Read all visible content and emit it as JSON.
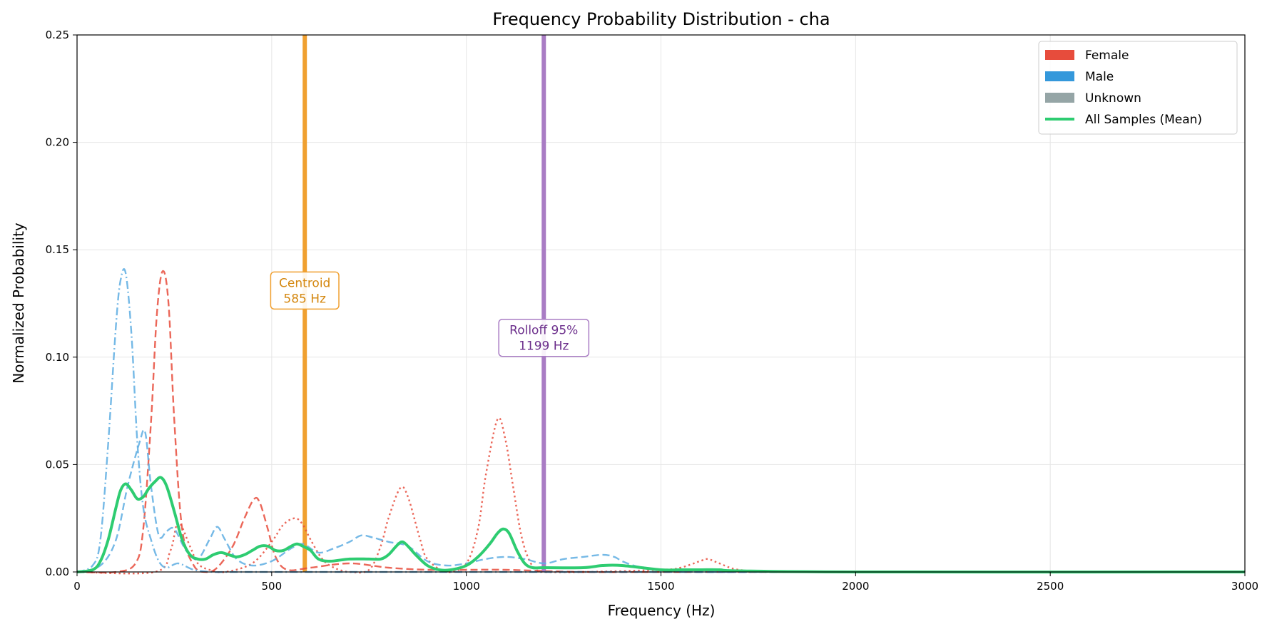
{
  "chart_data": {
    "type": "line",
    "title": "Frequency Probability Distribution - cha",
    "xlabel": "Frequency (Hz)",
    "ylabel": "Normalized Probability",
    "xlim": [
      0,
      3000
    ],
    "ylim": [
      0,
      0.25
    ],
    "xticks": [
      0,
      500,
      1000,
      1500,
      2000,
      2500,
      3000
    ],
    "yticks": [
      0.0,
      0.05,
      0.1,
      0.15,
      0.2,
      0.25
    ],
    "grid": true,
    "legend_position": "top-right",
    "legend": [
      {
        "label": "Female",
        "kind": "patch",
        "color": "#e74c3c"
      },
      {
        "label": "Male",
        "kind": "patch",
        "color": "#3498db"
      },
      {
        "label": "Unknown",
        "kind": "patch",
        "color": "#95a5a6"
      },
      {
        "label": "All Samples (Mean)",
        "kind": "line",
        "color": "#2ecc71"
      }
    ],
    "markers": [
      {
        "x": 585,
        "label_line1": "Centroid",
        "label_line2": "585 Hz",
        "label_y": 0.131,
        "color": "#f0a030",
        "text_color": "#d4870f"
      },
      {
        "x": 1199,
        "label_line1": "Rolloff 95%",
        "label_line2": "1199 Hz",
        "label_y": 0.109,
        "color": "#a97cc4",
        "text_color": "#6c2f8c"
      }
    ],
    "series": [
      {
        "color": "#e74c3c",
        "dash": "dashed",
        "x": [
          0,
          100,
          150,
          170,
          190,
          205,
          220,
          235,
          250,
          270,
          300,
          330,
          360,
          400,
          430,
          455,
          470,
          490,
          510,
          540,
          600,
          700,
          800,
          900,
          1000,
          1100,
          1300,
          1500,
          2000,
          3000
        ],
        "y": [
          0,
          0,
          0.004,
          0.02,
          0.07,
          0.12,
          0.14,
          0.125,
          0.07,
          0.02,
          0.003,
          0,
          0.002,
          0.012,
          0.025,
          0.034,
          0.032,
          0.02,
          0.007,
          0.001,
          0.002,
          0.004,
          0.002,
          0.001,
          0.001,
          0.001,
          0,
          0,
          0,
          0
        ]
      },
      {
        "color": "#e74c3c",
        "dash": "dotted",
        "x": [
          0,
          200,
          240,
          260,
          290,
          310,
          340,
          380,
          450,
          500,
          530,
          560,
          580,
          600,
          630,
          660,
          700,
          750,
          780,
          800,
          830,
          850,
          880,
          900,
          950,
          1000,
          1030,
          1050,
          1080,
          1100,
          1120,
          1140,
          1160,
          1180,
          1200,
          1300,
          1500,
          1550,
          1600,
          1620,
          1650,
          1700,
          1800,
          2000,
          3000
        ],
        "y": [
          0,
          0,
          0.01,
          0.023,
          0.012,
          0.004,
          0.001,
          0,
          0.004,
          0.014,
          0.022,
          0.025,
          0.022,
          0.015,
          0.006,
          0.002,
          0,
          0.001,
          0.012,
          0.025,
          0.039,
          0.035,
          0.016,
          0.006,
          0,
          0.004,
          0.02,
          0.045,
          0.071,
          0.062,
          0.04,
          0.018,
          0.006,
          0.001,
          0,
          0,
          0.001,
          0.002,
          0.005,
          0.006,
          0.004,
          0.001,
          0,
          0,
          0
        ]
      },
      {
        "color": "#5dade2",
        "dash": "dashdot",
        "x": [
          0,
          40,
          60,
          80,
          100,
          112,
          125,
          140,
          155,
          170,
          190,
          210,
          230,
          260,
          300,
          350,
          400,
          600,
          800,
          1000,
          1500,
          3000
        ],
        "y": [
          0,
          0.003,
          0.015,
          0.06,
          0.115,
          0.136,
          0.139,
          0.11,
          0.06,
          0.03,
          0.015,
          0.005,
          0.002,
          0.004,
          0.001,
          0,
          0,
          0,
          0,
          0,
          0,
          0
        ]
      },
      {
        "color": "#5dade2",
        "dash": "dashed",
        "x": [
          0,
          60,
          100,
          130,
          160,
          175,
          190,
          210,
          230,
          250,
          280,
          310,
          340,
          360,
          380,
          410,
          450,
          500,
          550,
          580,
          620,
          660,
          700,
          730,
          760,
          800,
          850,
          900,
          950,
          1000,
          1050,
          1100,
          1150,
          1200,
          1250,
          1300,
          1350,
          1380,
          1400,
          1430,
          1460,
          1500,
          1600,
          1800,
          2000,
          3000
        ],
        "y": [
          0,
          0.003,
          0.015,
          0.04,
          0.06,
          0.065,
          0.04,
          0.017,
          0.019,
          0.02,
          0.01,
          0.006,
          0.015,
          0.021,
          0.015,
          0.006,
          0.003,
          0.005,
          0.011,
          0.013,
          0.009,
          0.011,
          0.014,
          0.017,
          0.016,
          0.014,
          0.012,
          0.005,
          0.003,
          0.004,
          0.006,
          0.007,
          0.006,
          0.004,
          0.006,
          0.007,
          0.008,
          0.007,
          0.005,
          0.003,
          0.002,
          0.001,
          0,
          0,
          0,
          0
        ]
      },
      {
        "color": "#2ecc71",
        "dash": "solid",
        "thick": true,
        "x": [
          0,
          40,
          60,
          80,
          100,
          112,
          125,
          140,
          155,
          170,
          185,
          200,
          215,
          230,
          250,
          270,
          290,
          310,
          330,
          350,
          370,
          390,
          410,
          430,
          450,
          470,
          490,
          510,
          530,
          550,
          565,
          580,
          600,
          620,
          650,
          700,
          750,
          780,
          800,
          820,
          835,
          850,
          870,
          900,
          930,
          960,
          1000,
          1030,
          1060,
          1080,
          1095,
          1110,
          1130,
          1150,
          1170,
          1200,
          1300,
          1350,
          1400,
          1500,
          1550,
          1600,
          1650,
          1700,
          2000,
          3000
        ],
        "y": [
          0,
          0.001,
          0.005,
          0.015,
          0.03,
          0.038,
          0.041,
          0.038,
          0.034,
          0.035,
          0.039,
          0.042,
          0.044,
          0.04,
          0.028,
          0.015,
          0.008,
          0.006,
          0.006,
          0.008,
          0.009,
          0.008,
          0.007,
          0.008,
          0.01,
          0.012,
          0.012,
          0.01,
          0.01,
          0.012,
          0.013,
          0.012,
          0.01,
          0.006,
          0.005,
          0.006,
          0.006,
          0.006,
          0.008,
          0.012,
          0.014,
          0.012,
          0.008,
          0.003,
          0.001,
          0.001,
          0.003,
          0.007,
          0.013,
          0.018,
          0.02,
          0.018,
          0.01,
          0.004,
          0.002,
          0.002,
          0.002,
          0.003,
          0.003,
          0.001,
          0.001,
          0.001,
          0.001,
          0.0005,
          0,
          0
        ]
      }
    ]
  }
}
